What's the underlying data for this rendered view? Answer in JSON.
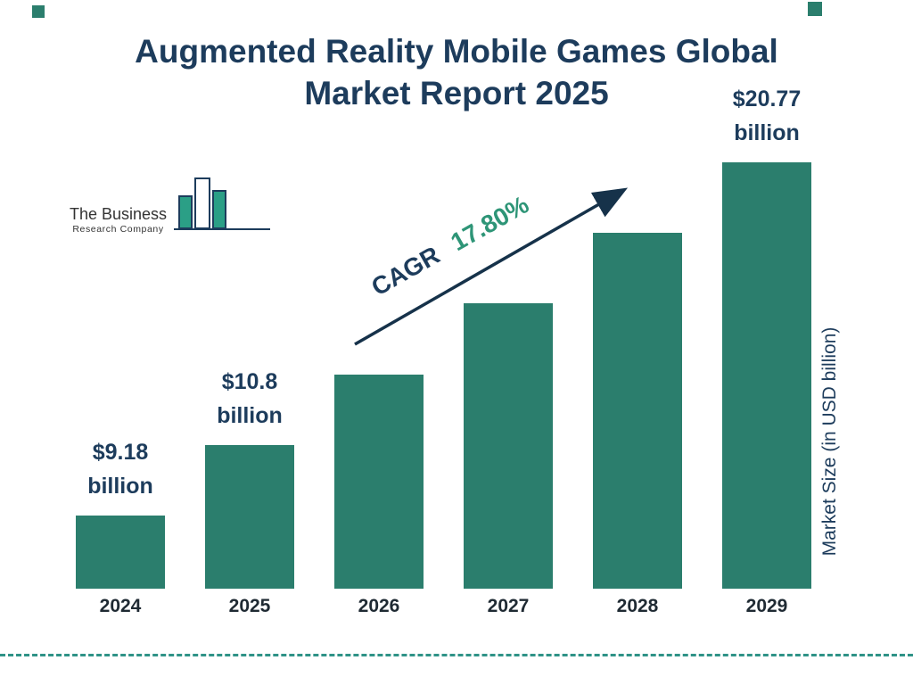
{
  "page": {
    "title_line1": "Augmented Reality Mobile Games Global",
    "title_line2": "Market Report 2025"
  },
  "logo": {
    "name_line1": "The Business",
    "name_line2": "Research Company"
  },
  "chart_data": {
    "type": "bar",
    "title": "Augmented Reality Mobile Games Global Market Report 2025",
    "categories": [
      "2024",
      "2025",
      "2026",
      "2027",
      "2028",
      "2029"
    ],
    "values": [
      9.18,
      10.8,
      12.73,
      15.0,
      17.67,
      20.77
    ],
    "unit": "USD billion",
    "value_labels": [
      {
        "amount": "$9.18",
        "unit": "billion"
      },
      {
        "amount": "$10.8",
        "unit": "billion"
      },
      null,
      null,
      null,
      {
        "amount": "$20.77",
        "unit": "billion"
      }
    ],
    "cagr": {
      "label": "CAGR",
      "value": "17.80%"
    },
    "ylabel": "Market Size (in USD billion)",
    "xlabel": "",
    "legend": "none",
    "grid": false,
    "bar_color": "#2b7e6d"
  },
  "colors": {
    "bar": "#2b7e6d",
    "navy_text": "#1d3c5c",
    "cagr_teal": "#2e9577",
    "arrow": "#16324a",
    "dashed_line": "#2f9387"
  }
}
